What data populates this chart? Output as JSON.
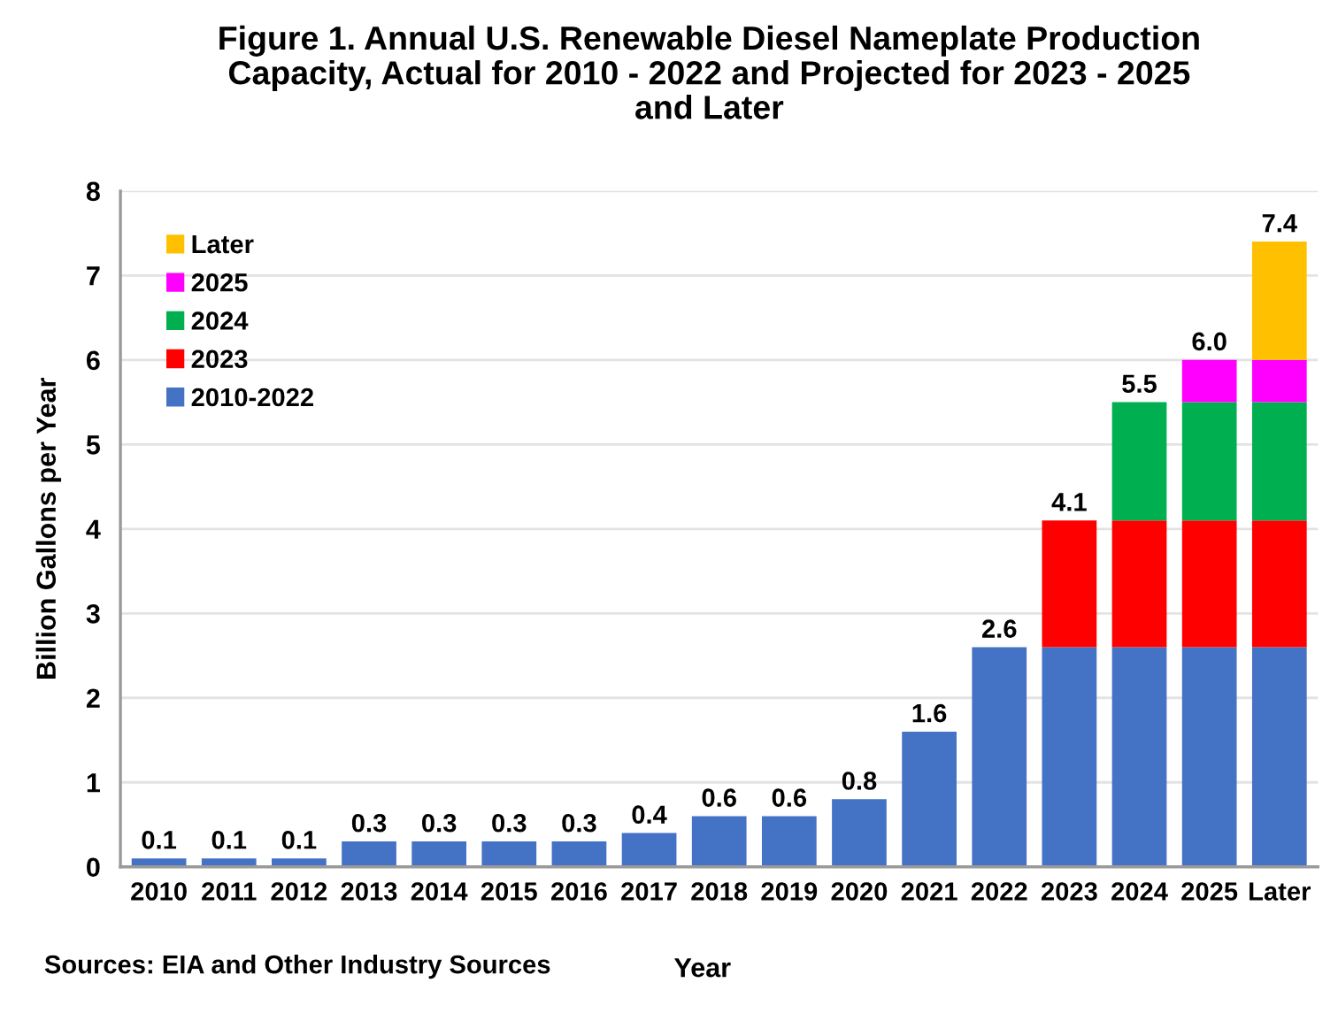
{
  "chart_data": {
    "type": "bar",
    "title": "Figure 1. Annual U.S. Renewable Diesel Nameplate Production\nCapacity, Actual for 2010 - 2022 and Projected for 2023 - 2025\nand Later",
    "xlabel": "Year",
    "ylabel": "Billion Gallons per Year",
    "categories": [
      "2010",
      "2011",
      "2012",
      "2013",
      "2014",
      "2015",
      "2016",
      "2017",
      "2018",
      "2019",
      "2020",
      "2021",
      "2022",
      "2023",
      "2024",
      "2025",
      "Later"
    ],
    "series": [
      {
        "name": "2010-2022",
        "color": "#4472c4",
        "values": [
          0.1,
          0.1,
          0.1,
          0.3,
          0.3,
          0.3,
          0.3,
          0.4,
          0.6,
          0.6,
          0.8,
          1.6,
          2.6,
          2.6,
          2.6,
          2.6,
          2.6
        ]
      },
      {
        "name": "2023",
        "color": "#ff0000",
        "values": [
          null,
          null,
          null,
          null,
          null,
          null,
          null,
          null,
          null,
          null,
          null,
          null,
          null,
          1.5,
          1.5,
          1.5,
          1.5
        ]
      },
      {
        "name": "2024",
        "color": "#00b050",
        "values": [
          null,
          null,
          null,
          null,
          null,
          null,
          null,
          null,
          null,
          null,
          null,
          null,
          null,
          null,
          1.4,
          1.4,
          1.4
        ]
      },
      {
        "name": "2025",
        "color": "#ff00ff",
        "values": [
          null,
          null,
          null,
          null,
          null,
          null,
          null,
          null,
          null,
          null,
          null,
          null,
          null,
          null,
          null,
          0.5,
          0.5
        ]
      },
      {
        "name": "Later",
        "color": "#ffc000",
        "values": [
          null,
          null,
          null,
          null,
          null,
          null,
          null,
          null,
          null,
          null,
          null,
          null,
          null,
          null,
          null,
          null,
          1.4
        ]
      }
    ],
    "stacked": true,
    "totals": [
      "0.1",
      "0.1",
      "0.1",
      "0.3",
      "0.3",
      "0.3",
      "0.3",
      "0.4",
      "0.6",
      "0.6",
      "0.8",
      "1.6",
      "2.6",
      "4.1",
      "5.5",
      "6.0",
      "7.4"
    ],
    "ylim": [
      0,
      8
    ],
    "yticks": [
      0,
      1,
      2,
      3,
      4,
      5,
      6,
      7,
      8
    ],
    "grid": "y",
    "legend": "top left",
    "annotations": [
      "Sources: EIA and Other Industry Sources"
    ]
  }
}
